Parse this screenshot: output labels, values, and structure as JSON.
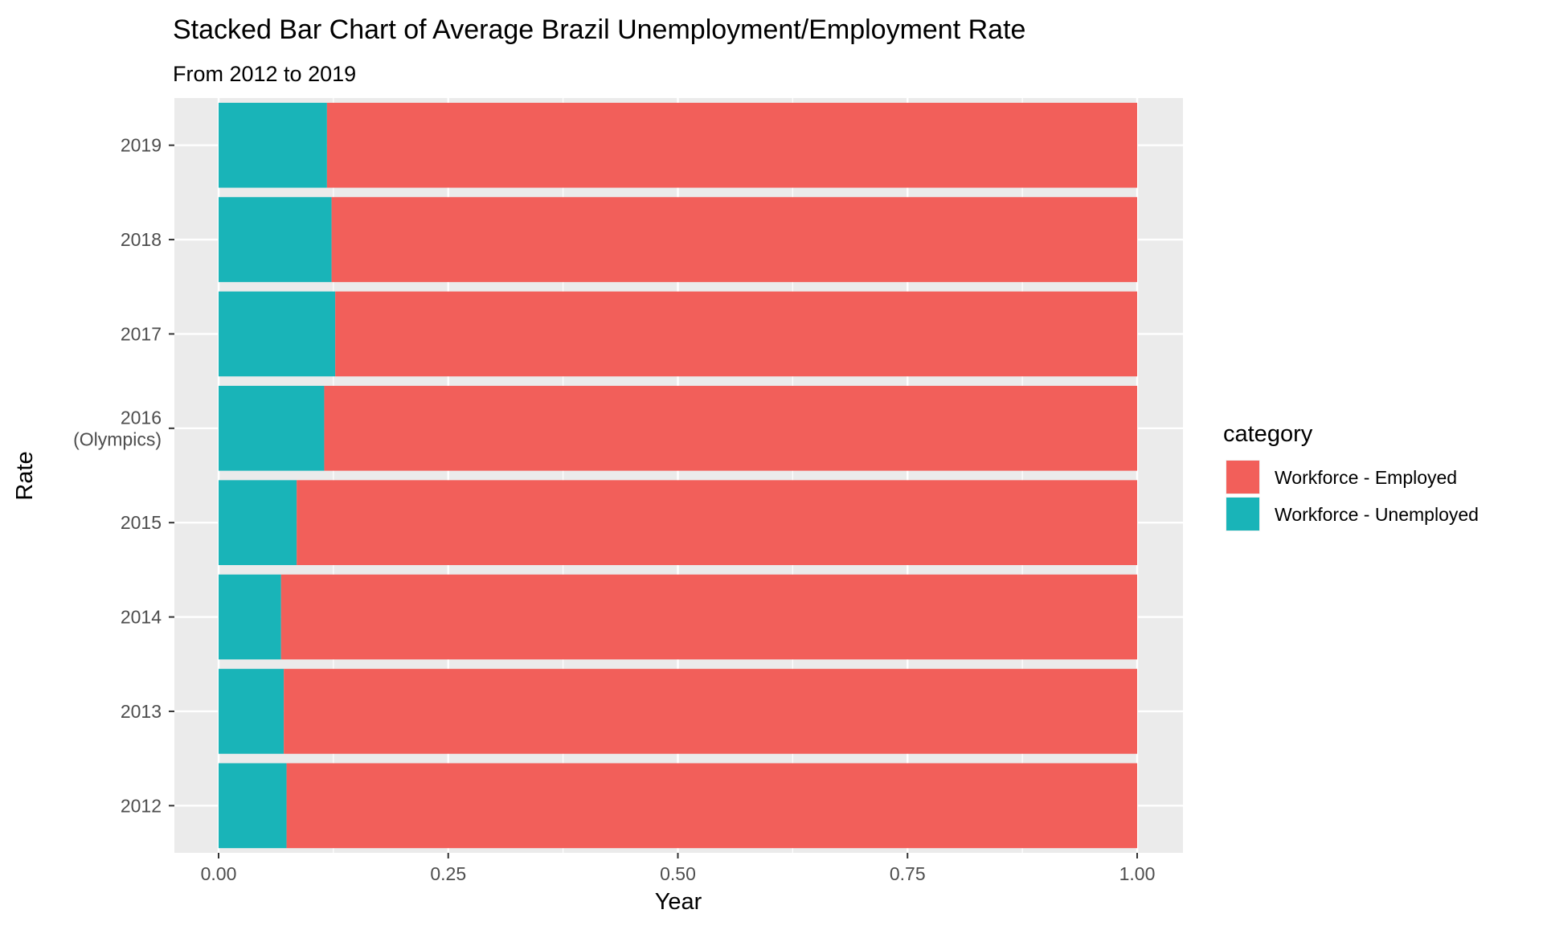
{
  "chart_data": {
    "type": "bar",
    "orientation": "horizontal",
    "stacked": true,
    "title": "Stacked Bar Chart of Average Brazil Unemployment/Employment Rate",
    "subtitle": "From 2012 to 2019",
    "xlabel": "Year",
    "ylabel": "Rate",
    "xlim": [
      0,
      1
    ],
    "xticks": [
      "0.00",
      "0.25",
      "0.50",
      "0.75",
      "1.00"
    ],
    "categories": [
      "2012",
      "2013",
      "2014",
      "2015",
      "2016\n(Olympics)",
      "2017",
      "2018",
      "2019"
    ],
    "series": [
      {
        "name": "Workforce - Unemployed",
        "color": "#19B4B8",
        "values": [
          0.074,
          0.071,
          0.068,
          0.085,
          0.115,
          0.127,
          0.123,
          0.118
        ]
      },
      {
        "name": "Workforce - Employed",
        "color": "#F25F5A",
        "values": [
          0.926,
          0.929,
          0.932,
          0.915,
          0.885,
          0.873,
          0.877,
          0.882
        ]
      }
    ],
    "legend": {
      "title": "category",
      "position": "right",
      "entries": [
        "Workforce - Employed",
        "Workforce - Unemployed"
      ],
      "colors": [
        "#F25F5A",
        "#19B4B8"
      ]
    },
    "grid": true,
    "panel_background": "#EBEBEB"
  }
}
